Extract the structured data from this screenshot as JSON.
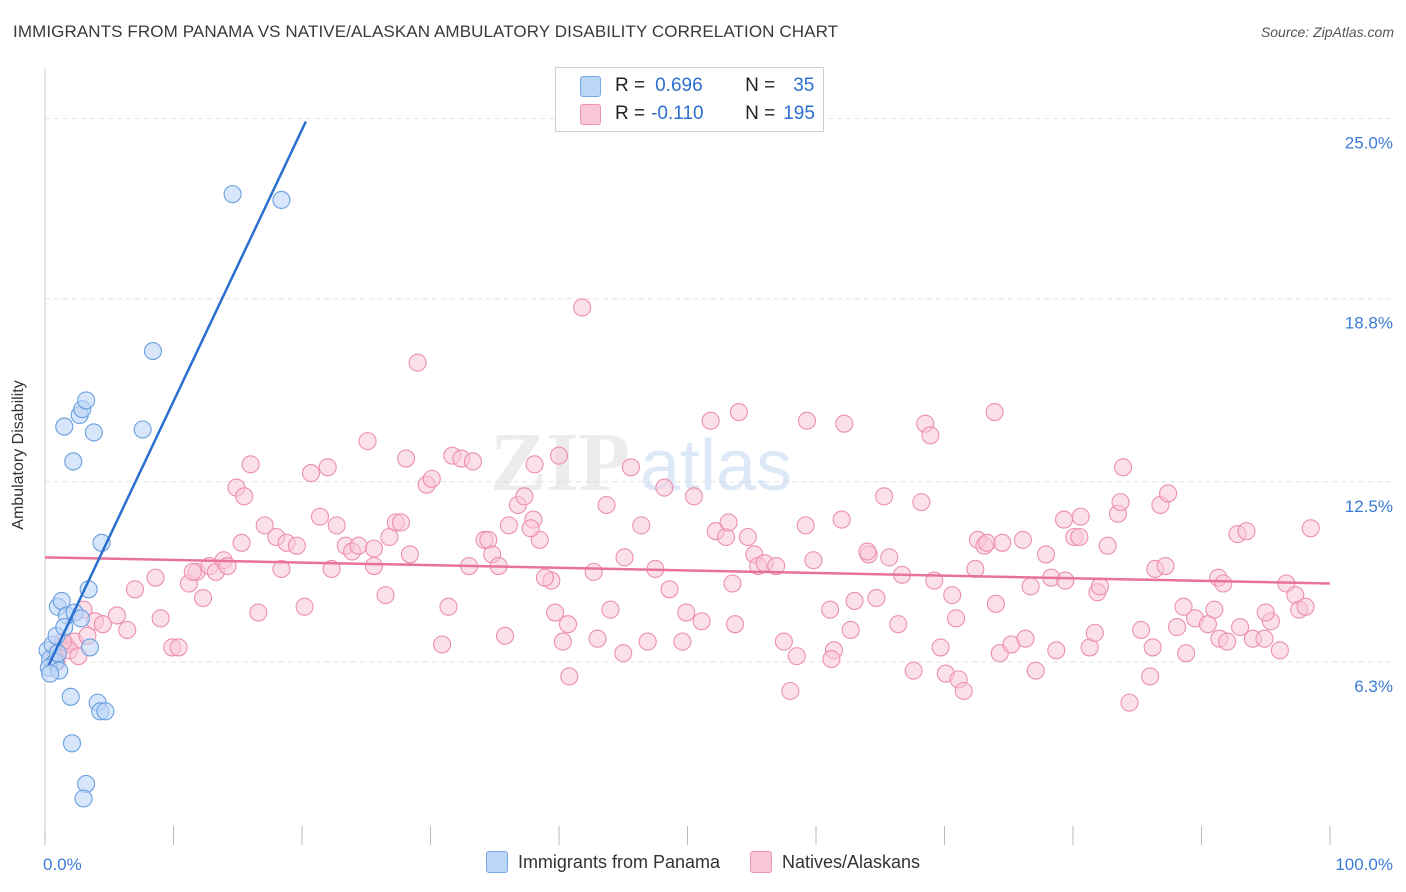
{
  "title": "IMMIGRANTS FROM PANAMA VS NATIVE/ALASKAN AMBULATORY DISABILITY CORRELATION CHART",
  "source": "Source: ZipAtlas.com",
  "watermark": {
    "zip": "ZIP",
    "atlas": "atlas"
  },
  "colors": {
    "blue_fill": "#bcd6f6",
    "blue_stroke": "#6a9fe0",
    "blue_line": "#2a6fd0",
    "pink_fill": "#f9c7d7",
    "pink_stroke": "#ec8fae",
    "pink_line": "#e8739a",
    "tick_label": "#3a7bd5",
    "grid": "#e3e3e3"
  },
  "stats": [
    {
      "r_label": "R =",
      "r": "0.696",
      "n_label": "N =",
      "n": "35"
    },
    {
      "r_label": "R =",
      "r": "-0.110",
      "n_label": "N =",
      "n": "195"
    }
  ],
  "chart_data": {
    "type": "scatter",
    "ylabel": "Ambulatory Disability",
    "xlim": [
      0,
      100
    ],
    "ylim": [
      0,
      26.5
    ],
    "x_tick_labels": [
      "0.0%",
      "100.0%"
    ],
    "y_ticks": [
      6.3,
      12.5,
      18.8,
      25.0
    ],
    "y_tick_labels": [
      "6.3%",
      "12.5%",
      "18.8%",
      "25.0%"
    ],
    "grid": true,
    "legend": [
      "Immigrants from Panama",
      "Natives/Alaskans"
    ],
    "series": [
      {
        "name": "Immigrants from Panama",
        "trend": {
          "x": [
            0.3,
            20.3
          ],
          "y": [
            6.2,
            24.9
          ]
        },
        "points": [
          [
            0.2,
            6.7
          ],
          [
            0.4,
            6.4
          ],
          [
            0.6,
            6.9
          ],
          [
            0.8,
            6.3
          ],
          [
            1.0,
            6.6
          ],
          [
            0.3,
            6.1
          ],
          [
            1.1,
            6.0
          ],
          [
            0.9,
            7.2
          ],
          [
            1.0,
            8.2
          ],
          [
            1.3,
            8.4
          ],
          [
            1.7,
            7.9
          ],
          [
            1.5,
            7.5
          ],
          [
            2.3,
            8.0
          ],
          [
            2.8,
            7.8
          ],
          [
            3.4,
            8.8
          ],
          [
            3.5,
            6.8
          ],
          [
            1.5,
            14.4
          ],
          [
            2.2,
            13.2
          ],
          [
            2.7,
            14.8
          ],
          [
            2.9,
            15.0
          ],
          [
            3.2,
            15.3
          ],
          [
            3.8,
            14.2
          ],
          [
            7.6,
            14.3
          ],
          [
            4.4,
            10.4
          ],
          [
            8.4,
            17.0
          ],
          [
            14.6,
            22.4
          ],
          [
            18.4,
            22.2
          ],
          [
            2.0,
            5.1
          ],
          [
            2.1,
            3.5
          ],
          [
            4.1,
            4.9
          ],
          [
            4.3,
            4.6
          ],
          [
            4.7,
            4.6
          ],
          [
            3.2,
            2.1
          ],
          [
            3.0,
            1.6
          ],
          [
            0.4,
            5.9
          ]
        ]
      },
      {
        "name": "Natives/Alaskans",
        "trend": {
          "x": [
            0.0,
            100.0
          ],
          "y": [
            9.9,
            9.0
          ]
        },
        "points": [
          [
            0.8,
            6.6
          ],
          [
            1.2,
            6.8
          ],
          [
            1.6,
            6.9
          ],
          [
            2.3,
            7.0
          ],
          [
            0.9,
            6.3
          ],
          [
            1.9,
            6.7
          ],
          [
            3.3,
            7.2
          ],
          [
            3.9,
            7.7
          ],
          [
            4.5,
            7.6
          ],
          [
            5.6,
            7.9
          ],
          [
            6.4,
            7.4
          ],
          [
            7.0,
            8.8
          ],
          [
            9.0,
            7.8
          ],
          [
            8.6,
            9.2
          ],
          [
            9.9,
            6.8
          ],
          [
            10.4,
            6.8
          ],
          [
            11.2,
            9.0
          ],
          [
            11.8,
            9.4
          ],
          [
            11.5,
            9.4
          ],
          [
            12.3,
            8.5
          ],
          [
            12.8,
            9.6
          ],
          [
            13.3,
            9.4
          ],
          [
            13.9,
            9.8
          ],
          [
            14.2,
            9.6
          ],
          [
            14.9,
            12.3
          ],
          [
            15.3,
            10.4
          ],
          [
            16.0,
            13.1
          ],
          [
            15.5,
            12.0
          ],
          [
            17.1,
            11.0
          ],
          [
            16.6,
            8.0
          ],
          [
            18.0,
            10.6
          ],
          [
            18.4,
            9.5
          ],
          [
            18.8,
            10.4
          ],
          [
            19.6,
            10.3
          ],
          [
            20.2,
            8.2
          ],
          [
            21.4,
            11.3
          ],
          [
            20.7,
            12.8
          ],
          [
            22.0,
            13.0
          ],
          [
            22.3,
            9.5
          ],
          [
            22.7,
            11.0
          ],
          [
            23.4,
            10.3
          ],
          [
            23.9,
            10.1
          ],
          [
            24.4,
            10.3
          ],
          [
            25.1,
            13.9
          ],
          [
            25.6,
            9.6
          ],
          [
            25.6,
            10.2
          ],
          [
            26.5,
            8.6
          ],
          [
            26.8,
            10.6
          ],
          [
            27.3,
            11.1
          ],
          [
            27.7,
            11.1
          ],
          [
            28.1,
            13.3
          ],
          [
            28.4,
            10.0
          ],
          [
            29.0,
            16.6
          ],
          [
            29.7,
            12.4
          ],
          [
            30.1,
            12.6
          ],
          [
            30.9,
            6.9
          ],
          [
            31.4,
            8.2
          ],
          [
            31.7,
            13.4
          ],
          [
            32.4,
            13.3
          ],
          [
            33.3,
            13.2
          ],
          [
            33.0,
            9.6
          ],
          [
            34.2,
            10.5
          ],
          [
            34.5,
            10.5
          ],
          [
            34.8,
            10.0
          ],
          [
            35.3,
            9.6
          ],
          [
            36.1,
            11.0
          ],
          [
            35.8,
            7.2
          ],
          [
            36.8,
            11.7
          ],
          [
            37.3,
            12.0
          ],
          [
            38.0,
            11.2
          ],
          [
            38.1,
            13.1
          ],
          [
            38.5,
            10.5
          ],
          [
            37.8,
            10.9
          ],
          [
            39.4,
            9.1
          ],
          [
            38.9,
            9.2
          ],
          [
            40.0,
            13.4
          ],
          [
            40.3,
            7.0
          ],
          [
            40.7,
            7.6
          ],
          [
            39.7,
            8.0
          ],
          [
            40.8,
            5.8
          ],
          [
            41.8,
            18.5
          ],
          [
            42.7,
            9.4
          ],
          [
            43.0,
            7.1
          ],
          [
            43.7,
            11.7
          ],
          [
            45.0,
            6.6
          ],
          [
            44.0,
            8.1
          ],
          [
            45.1,
            9.9
          ],
          [
            45.6,
            13.0
          ],
          [
            46.4,
            11.0
          ],
          [
            46.9,
            7.0
          ],
          [
            47.5,
            9.5
          ],
          [
            48.2,
            12.3
          ],
          [
            49.6,
            7.0
          ],
          [
            48.6,
            8.8
          ],
          [
            49.9,
            8.0
          ],
          [
            50.5,
            12.0
          ],
          [
            51.1,
            7.7
          ],
          [
            51.8,
            14.6
          ],
          [
            52.2,
            10.8
          ],
          [
            53.0,
            10.6
          ],
          [
            53.2,
            11.1
          ],
          [
            53.5,
            9.0
          ],
          [
            53.7,
            7.6
          ],
          [
            54.0,
            14.9
          ],
          [
            54.7,
            10.6
          ],
          [
            55.2,
            10.0
          ],
          [
            55.5,
            9.6
          ],
          [
            56.0,
            9.7
          ],
          [
            56.9,
            9.6
          ],
          [
            57.5,
            7.0
          ],
          [
            58.5,
            6.5
          ],
          [
            58.0,
            5.3
          ],
          [
            59.2,
            11.0
          ],
          [
            59.3,
            14.6
          ],
          [
            59.8,
            9.8
          ],
          [
            61.1,
            8.1
          ],
          [
            61.4,
            6.7
          ],
          [
            61.2,
            6.4
          ],
          [
            62.2,
            14.5
          ],
          [
            62.0,
            11.2
          ],
          [
            62.7,
            7.4
          ],
          [
            63.0,
            8.4
          ],
          [
            64.1,
            10.0
          ],
          [
            64.7,
            8.5
          ],
          [
            64.0,
            10.1
          ],
          [
            65.3,
            12.0
          ],
          [
            65.7,
            9.9
          ],
          [
            66.4,
            7.6
          ],
          [
            66.7,
            9.3
          ],
          [
            67.6,
            6.0
          ],
          [
            68.2,
            11.8
          ],
          [
            68.5,
            14.5
          ],
          [
            68.9,
            14.1
          ],
          [
            69.2,
            9.1
          ],
          [
            69.7,
            6.8
          ],
          [
            70.1,
            5.9
          ],
          [
            70.6,
            8.6
          ],
          [
            70.9,
            7.8
          ],
          [
            71.1,
            5.7
          ],
          [
            71.5,
            5.3
          ],
          [
            72.4,
            9.5
          ],
          [
            72.6,
            10.5
          ],
          [
            73.1,
            10.3
          ],
          [
            73.3,
            10.4
          ],
          [
            73.9,
            14.9
          ],
          [
            74.0,
            8.3
          ],
          [
            74.3,
            6.6
          ],
          [
            74.5,
            10.4
          ],
          [
            75.2,
            6.9
          ],
          [
            76.1,
            10.5
          ],
          [
            76.3,
            7.1
          ],
          [
            76.7,
            8.9
          ],
          [
            77.1,
            6.0
          ],
          [
            77.9,
            10.0
          ],
          [
            78.3,
            9.2
          ],
          [
            78.7,
            6.7
          ],
          [
            79.3,
            11.2
          ],
          [
            79.4,
            9.1
          ],
          [
            80.1,
            10.6
          ],
          [
            80.6,
            11.3
          ],
          [
            80.5,
            10.6
          ],
          [
            81.3,
            6.8
          ],
          [
            81.7,
            7.3
          ],
          [
            81.9,
            8.7
          ],
          [
            82.1,
            8.9
          ],
          [
            82.7,
            10.3
          ],
          [
            83.5,
            11.4
          ],
          [
            83.7,
            11.8
          ],
          [
            83.9,
            13.0
          ],
          [
            84.4,
            4.9
          ],
          [
            85.3,
            7.4
          ],
          [
            86.0,
            5.8
          ],
          [
            86.4,
            9.5
          ],
          [
            86.2,
            6.8
          ],
          [
            86.8,
            11.7
          ],
          [
            87.4,
            12.1
          ],
          [
            87.2,
            9.6
          ],
          [
            88.1,
            7.5
          ],
          [
            88.6,
            8.2
          ],
          [
            88.8,
            6.6
          ],
          [
            89.5,
            7.8
          ],
          [
            90.5,
            7.6
          ],
          [
            91.3,
            9.2
          ],
          [
            91.0,
            8.1
          ],
          [
            91.7,
            9.0
          ],
          [
            91.4,
            7.1
          ],
          [
            92.8,
            10.7
          ],
          [
            93.5,
            10.8
          ],
          [
            94.0,
            7.1
          ],
          [
            94.9,
            7.1
          ],
          [
            95.4,
            7.7
          ],
          [
            96.1,
            6.7
          ],
          [
            96.6,
            9.0
          ],
          [
            97.3,
            8.6
          ],
          [
            97.6,
            8.1
          ],
          [
            98.1,
            8.2
          ],
          [
            98.5,
            10.9
          ],
          [
            92.0,
            7.0
          ],
          [
            93.0,
            7.5
          ],
          [
            95.0,
            8.0
          ],
          [
            1.4,
            7.0
          ],
          [
            2.6,
            6.5
          ],
          [
            3.0,
            8.1
          ]
        ]
      }
    ]
  }
}
